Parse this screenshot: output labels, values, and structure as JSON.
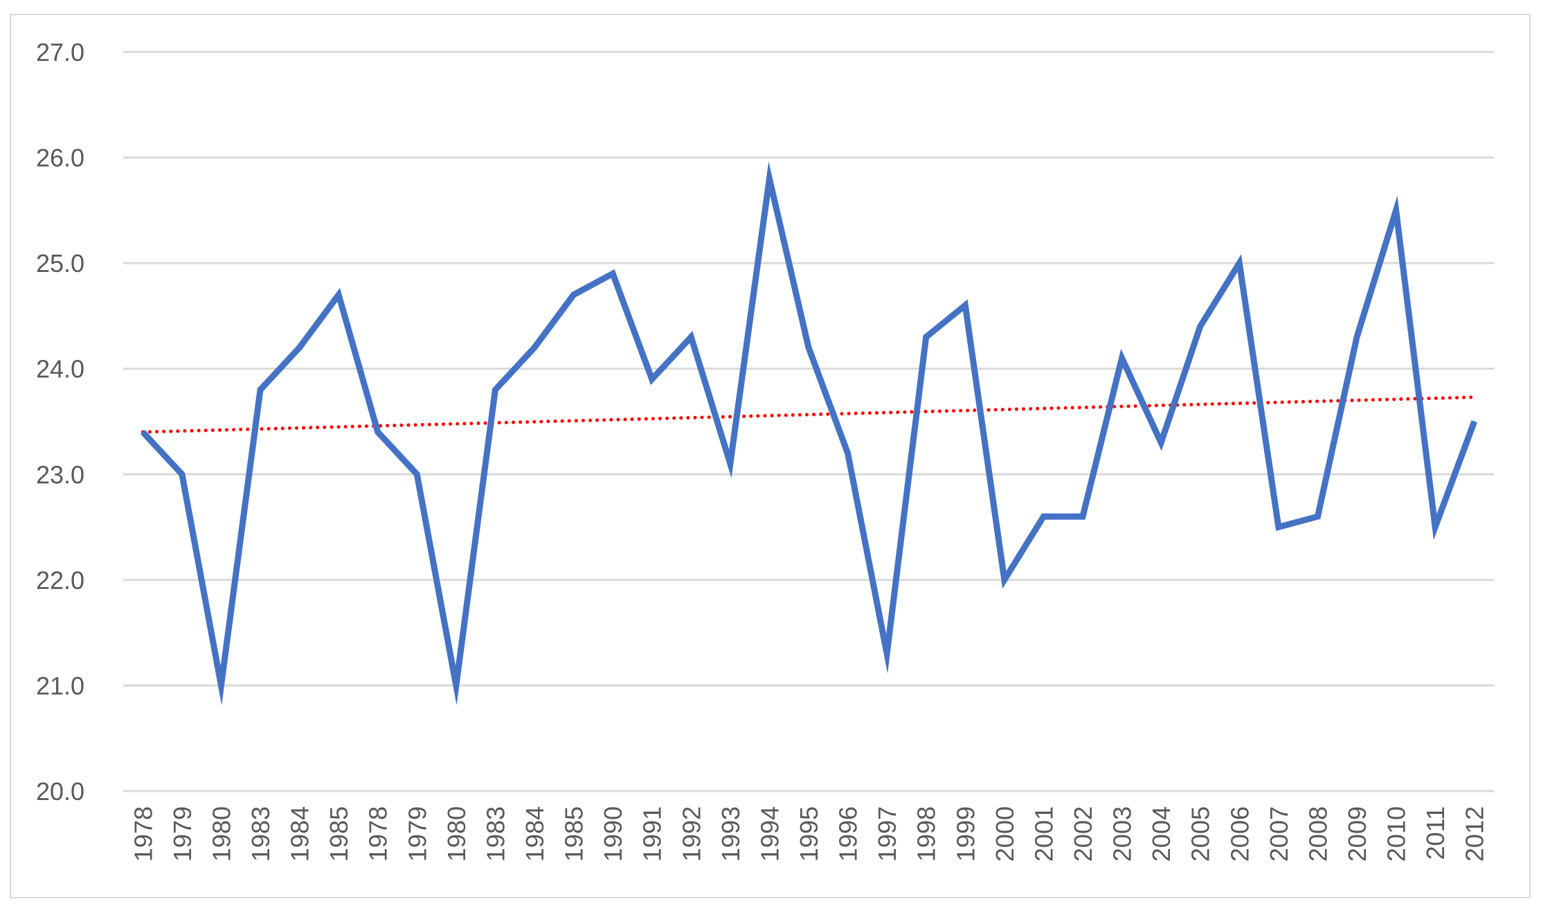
{
  "chart_data": {
    "type": "line",
    "title": "",
    "xlabel": "",
    "ylabel": "",
    "categories": [
      "1978",
      "1979",
      "1980",
      "1983",
      "1984",
      "1985",
      "1978",
      "1979",
      "1980",
      "1983",
      "1984",
      "1985",
      "1990",
      "1991",
      "1992",
      "1993",
      "1994",
      "1995",
      "1996",
      "1997",
      "1998",
      "1999",
      "2000",
      "2001",
      "2002",
      "2003",
      "2004",
      "2005",
      "2006",
      "2007",
      "2008",
      "2009",
      "2010",
      "2011",
      "2012"
    ],
    "series": [
      {
        "values": [
          23.4,
          23.0,
          21.0,
          23.8,
          24.2,
          24.7,
          23.4,
          23.0,
          21.0,
          23.8,
          24.2,
          24.7,
          24.9,
          23.9,
          24.3,
          23.1,
          25.8,
          24.2,
          23.2,
          21.3,
          24.3,
          24.6,
          22.0,
          22.6,
          22.6,
          24.1,
          23.3,
          24.4,
          25.0,
          22.5,
          22.6,
          24.3,
          25.5,
          22.5,
          23.5
        ],
        "color": "#4472c4"
      }
    ],
    "trendline": {
      "style": "dotted",
      "color": "#ff0000",
      "start": 23.4,
      "end": 23.73
    },
    "yticks": [
      "20.0",
      "21.0",
      "22.0",
      "23.0",
      "24.0",
      "25.0",
      "26.0",
      "27.0"
    ],
    "ylim": [
      20.0,
      27.0
    ],
    "grid": true,
    "legend": "none",
    "gridline_color": "#d9d9d9",
    "tick_label_color": "#595959"
  }
}
